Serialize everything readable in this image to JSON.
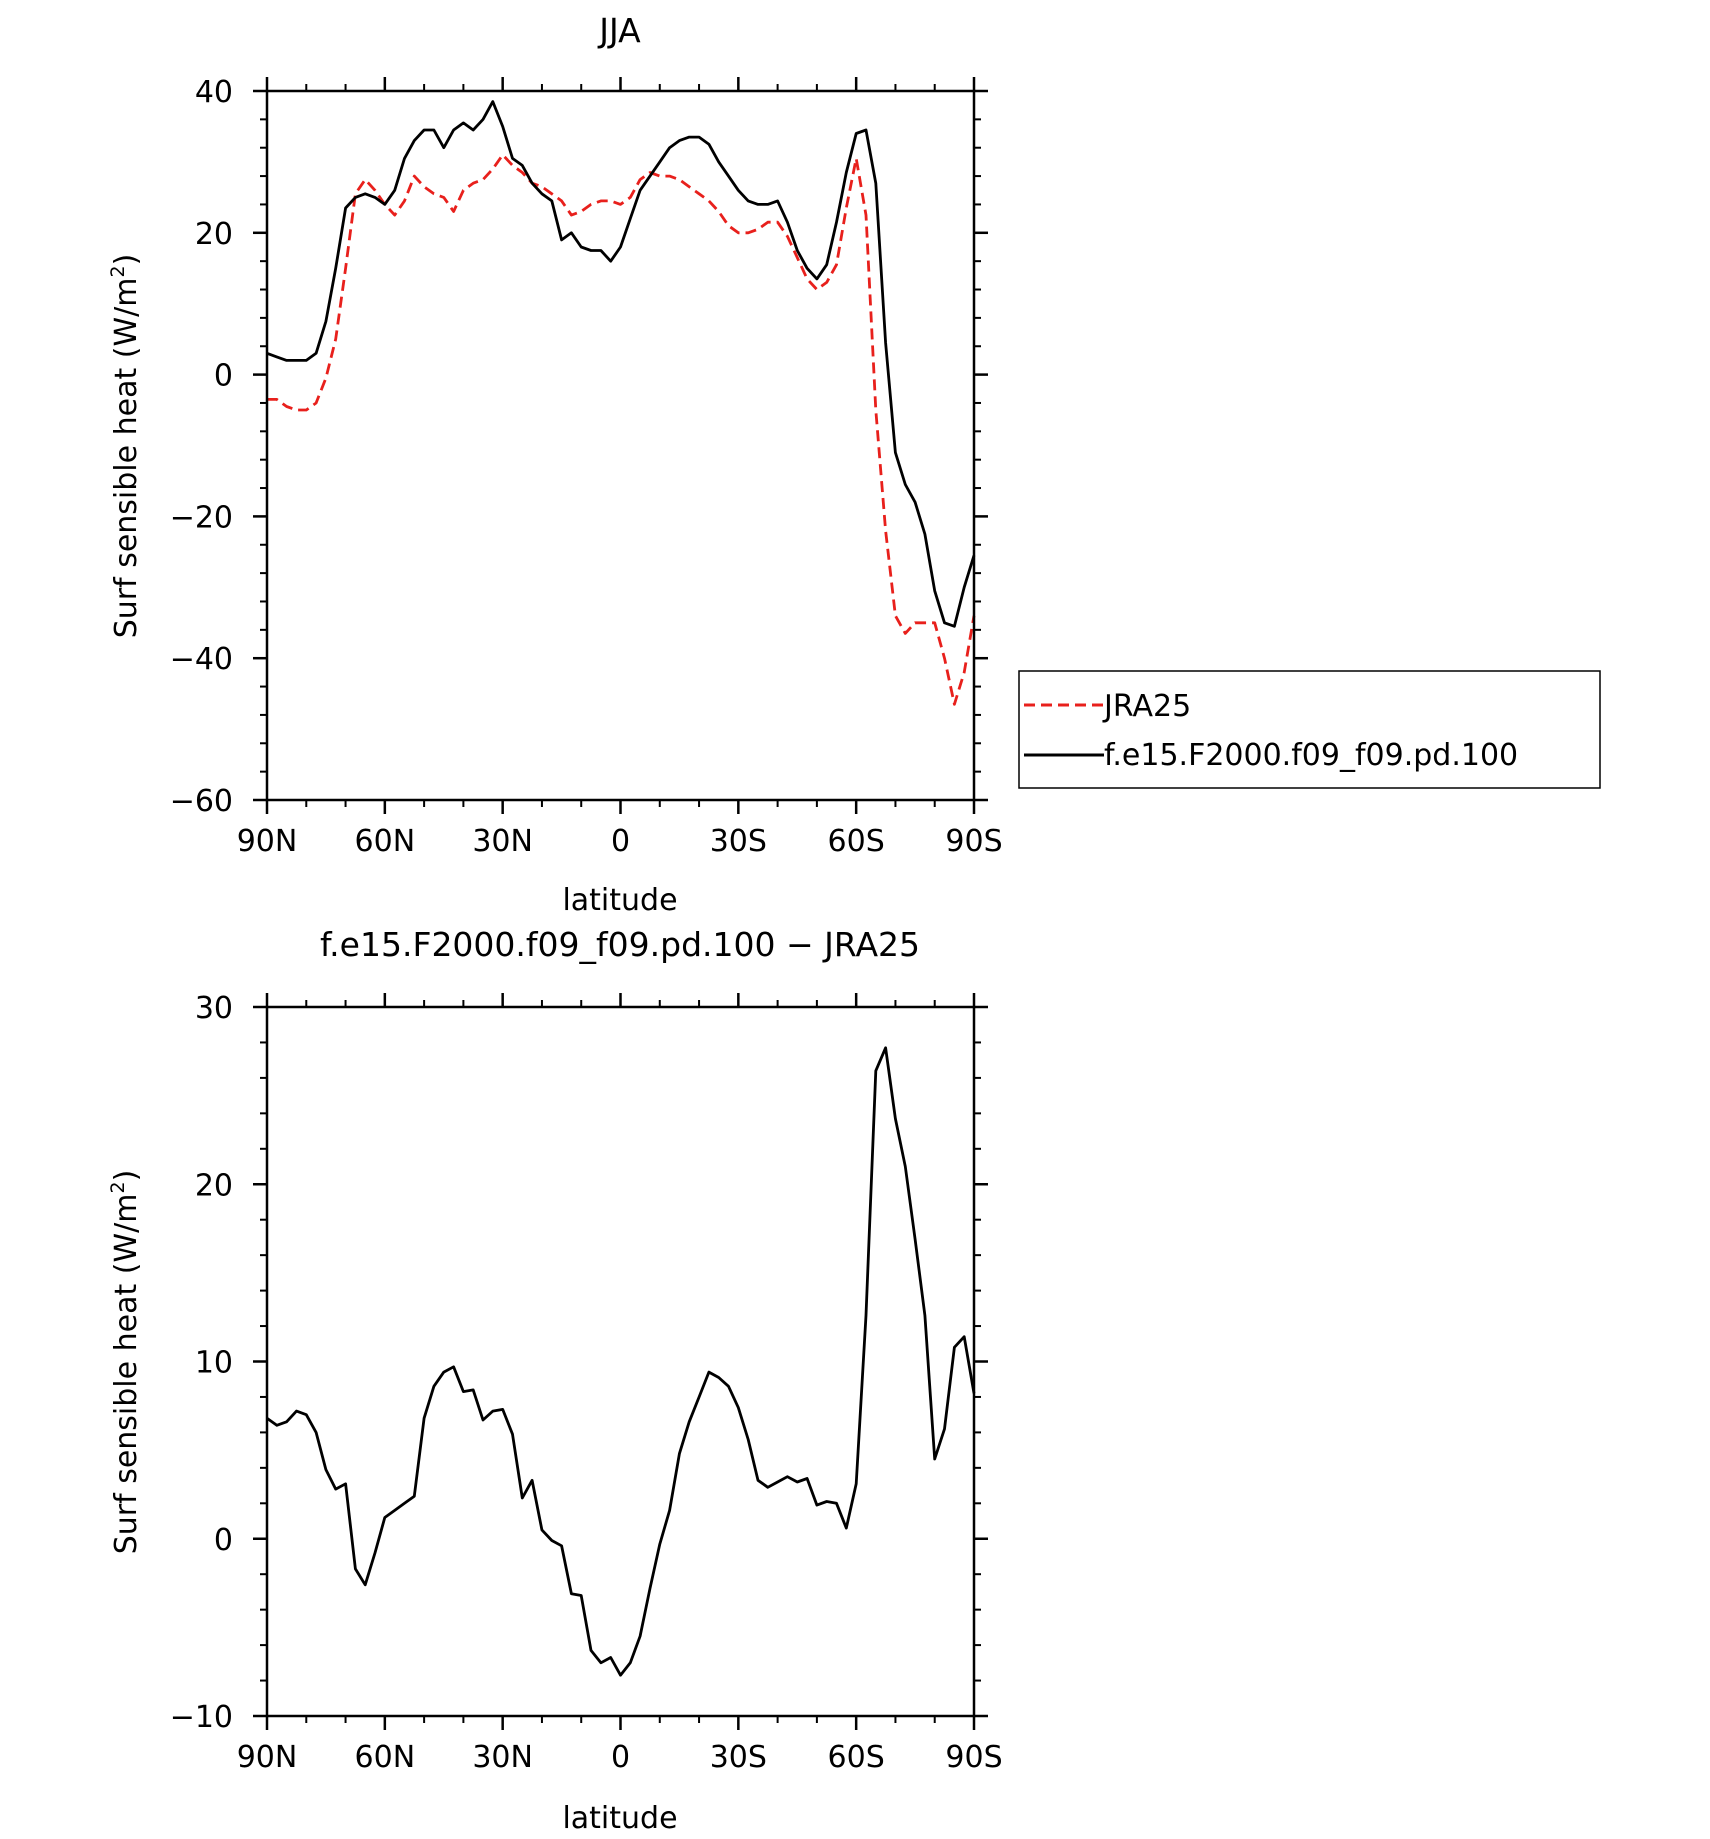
{
  "chart_data": [
    {
      "type": "line",
      "title": "JJA",
      "xlabel": "latitude",
      "ylabel": "Surf sensible heat (W/m²)",
      "ylabel_main": "Surf sensible heat (W/m",
      "ylabel_sup": "2",
      "ylabel_end": ")",
      "xlim": [
        90,
        -90
      ],
      "ylim": [
        -60,
        40
      ],
      "yticks": [
        40,
        20,
        0,
        -20,
        -40,
        -60
      ],
      "ytick_labels": [
        "40",
        "20",
        "0",
        "−20",
        "−40",
        "−60"
      ],
      "xticks": [
        90,
        60,
        30,
        0,
        -30,
        -60,
        -90
      ],
      "xtick_labels": [
        "90N",
        "60N",
        "30N",
        "0",
        "30S",
        "60S",
        "90S"
      ],
      "legend_position": "right",
      "series": [
        {
          "name": "JRA25",
          "color": "#e8201c",
          "dash": "dashed",
          "x": [
            90,
            87.5,
            85,
            82.5,
            80,
            77.5,
            75,
            72.5,
            70,
            67.5,
            65,
            62.5,
            60,
            57.5,
            55,
            52.5,
            50,
            47.5,
            45,
            42.5,
            40,
            37.5,
            35,
            32.5,
            30,
            27.5,
            25,
            22.5,
            20,
            17.5,
            15,
            12.5,
            10,
            7.5,
            5,
            2.5,
            0,
            -2.5,
            -5,
            -7.5,
            -10,
            -12.5,
            -15,
            -17.5,
            -20,
            -22.5,
            -25,
            -27.5,
            -30,
            -32.5,
            -35,
            -37.5,
            -40,
            -42.5,
            -45,
            -47.5,
            -50,
            -52.5,
            -55,
            -57.5,
            -60,
            -62.5,
            -65,
            -67.5,
            -70,
            -72.5,
            -75,
            -77.5,
            -80,
            -82.5,
            -85,
            -87.5,
            -90
          ],
          "y": [
            -3.5,
            -3.5,
            -4.5,
            -5.0,
            -5.0,
            -4.0,
            -0.5,
            5.0,
            15.0,
            25.5,
            27.5,
            26.0,
            24.0,
            22.5,
            24.5,
            28.0,
            26.5,
            25.5,
            25.0,
            23.0,
            26.0,
            27.0,
            27.5,
            29.0,
            31.0,
            29.5,
            28.5,
            27.0,
            26.5,
            25.5,
            24.5,
            22.5,
            23.0,
            24.0,
            24.5,
            24.5,
            24.0,
            25.0,
            27.5,
            28.5,
            28.0,
            28.0,
            27.5,
            26.5,
            25.5,
            24.5,
            23.0,
            21.0,
            20.0,
            20.0,
            20.5,
            21.5,
            21.5,
            19.5,
            16.5,
            13.5,
            12.0,
            13.0,
            15.5,
            23.5,
            30.5,
            22.5,
            -5.0,
            -22.0,
            -34.0,
            -36.5,
            -35.0,
            -35.0,
            -35.0,
            -40.0,
            -46.5,
            -42.0,
            -34.0
          ]
        },
        {
          "name": "f.e15.F2000.f09_f09.pd.100",
          "color": "#000000",
          "dash": "solid",
          "x": [
            90,
            87.5,
            85,
            82.5,
            80,
            77.5,
            75,
            72.5,
            70,
            67.5,
            65,
            62.5,
            60,
            57.5,
            55,
            52.5,
            50,
            47.5,
            45,
            42.5,
            40,
            37.5,
            35,
            32.5,
            30,
            27.5,
            25,
            22.5,
            20,
            17.5,
            15,
            12.5,
            10,
            7.5,
            5,
            2.5,
            0,
            -2.5,
            -5,
            -7.5,
            -10,
            -12.5,
            -15,
            -17.5,
            -20,
            -22.5,
            -25,
            -27.5,
            -30,
            -32.5,
            -35,
            -37.5,
            -40,
            -42.5,
            -45,
            -47.5,
            -50,
            -52.5,
            -55,
            -57.5,
            -60,
            -62.5,
            -65,
            -67.5,
            -70,
            -72.5,
            -75,
            -77.5,
            -80,
            -82.5,
            -85,
            -87.5,
            -90
          ],
          "y": [
            3.0,
            2.5,
            2.0,
            2.0,
            2.0,
            3.0,
            7.5,
            15.0,
            23.5,
            25.0,
            25.5,
            25.0,
            24.0,
            26.0,
            30.5,
            33.0,
            34.5,
            34.5,
            32.0,
            34.5,
            35.5,
            34.5,
            36.0,
            38.5,
            35.0,
            30.5,
            29.5,
            27.0,
            25.5,
            24.5,
            19.0,
            20.0,
            18.0,
            17.5,
            17.5,
            16.0,
            18.0,
            22.0,
            26.0,
            28.0,
            30.0,
            32.0,
            33.0,
            33.5,
            33.5,
            32.5,
            30.0,
            28.0,
            26.0,
            24.5,
            24.0,
            24.0,
            24.5,
            21.5,
            17.5,
            15.0,
            13.5,
            15.5,
            21.5,
            28.5,
            34.0,
            34.5,
            27.0,
            4.5,
            -11.0,
            -15.5,
            -18.0,
            -22.5,
            -30.5,
            -35.0,
            -35.5,
            -30.0,
            -25.5
          ]
        }
      ]
    },
    {
      "type": "line",
      "title": "f.e15.F2000.f09_f09.pd.100 − JRA25",
      "xlabel": "latitude",
      "ylabel": "Surf sensible heat (W/m²)",
      "ylabel_main": "Surf sensible heat (W/m",
      "ylabel_sup": "2",
      "ylabel_end": ")",
      "xlim": [
        90,
        -90
      ],
      "ylim": [
        -10,
        30
      ],
      "yticks": [
        30,
        20,
        10,
        0,
        -10
      ],
      "ytick_labels": [
        "30",
        "20",
        "10",
        "0",
        "−10"
      ],
      "xticks": [
        90,
        60,
        30,
        0,
        -30,
        -60,
        -90
      ],
      "xtick_labels": [
        "90N",
        "60N",
        "30N",
        "0",
        "30S",
        "60S",
        "90S"
      ],
      "series": [
        {
          "color": "#000000",
          "dash": "solid",
          "x": [
            90,
            87.5,
            85,
            82.5,
            80,
            77.5,
            75,
            72.5,
            70,
            67.5,
            65,
            62.5,
            60,
            57.5,
            55,
            52.5,
            50,
            47.5,
            45,
            42.5,
            40,
            37.5,
            35,
            32.5,
            30,
            27.5,
            25,
            22.5,
            20,
            17.5,
            15,
            12.5,
            10,
            7.5,
            5,
            2.5,
            0,
            -2.5,
            -5,
            -7.5,
            -10,
            -12.5,
            -15,
            -17.5,
            -20,
            -22.5,
            -25,
            -27.5,
            -30,
            -32.5,
            -35,
            -37.5,
            -40,
            -42.5,
            -45,
            -47.5,
            -50,
            -52.5,
            -55,
            -57.5,
            -60,
            -62.5,
            -65,
            -67.5,
            -70,
            -72.5,
            -75,
            -77.5,
            -80,
            -82.5,
            -85,
            -87.5,
            -90
          ],
          "y": [
            6.8,
            6.4,
            6.6,
            7.2,
            7.0,
            6.0,
            3.9,
            2.8,
            3.1,
            -1.7,
            -2.6,
            -0.8,
            1.2,
            1.6,
            2.0,
            2.4,
            6.8,
            8.6,
            9.4,
            9.7,
            8.3,
            8.4,
            6.7,
            7.2,
            7.3,
            5.9,
            2.3,
            3.3,
            0.5,
            -0.1,
            -0.4,
            -3.1,
            -3.2,
            -6.3,
            -7.0,
            -6.7,
            -7.7,
            -7.0,
            -5.5,
            -2.8,
            -0.3,
            1.6,
            4.8,
            6.6,
            8.0,
            9.4,
            9.1,
            8.6,
            7.4,
            5.6,
            3.3,
            2.9,
            3.2,
            3.5,
            3.2,
            3.4,
            1.9,
            2.1,
            2.0,
            0.6,
            3.1,
            12.6,
            26.4,
            27.7,
            23.7,
            21.0,
            16.9,
            12.6,
            4.5,
            6.2,
            10.8,
            11.4,
            8.2
          ]
        }
      ]
    }
  ]
}
